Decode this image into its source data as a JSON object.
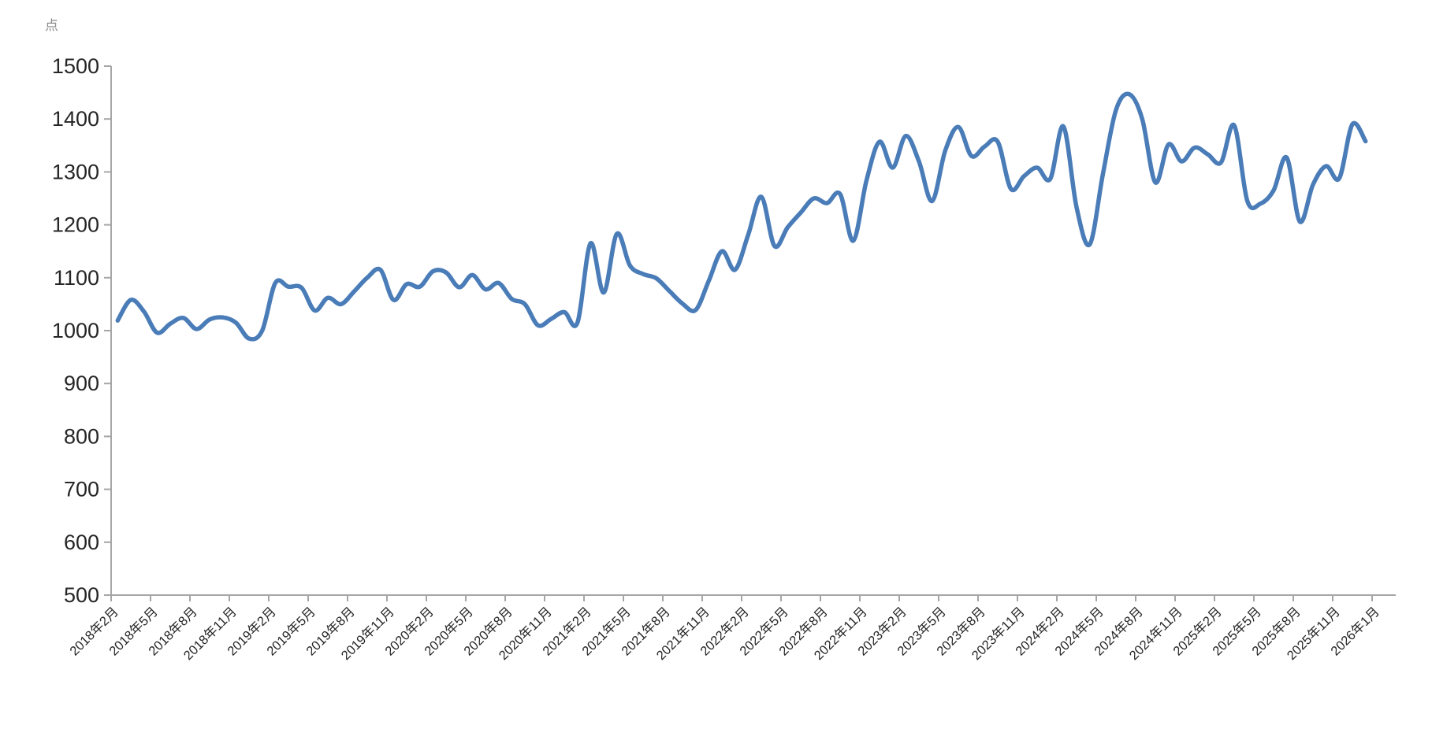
{
  "unit_label": "点",
  "chart_data": {
    "type": "line",
    "title": "",
    "ylabel": "点",
    "xlabel": "",
    "ylim": [
      500,
      1500
    ],
    "y_tick_step": 100,
    "grid": false,
    "legend": "none",
    "line_color": "#4A7CB8",
    "axis_color": "#A6A6A6",
    "tick_text_color": "#262626",
    "unit_label_color": "#8A8A8A",
    "y_tick_labels": [
      "500",
      "600",
      "700",
      "800",
      "900",
      "1000",
      "1100",
      "1200",
      "1300",
      "1400",
      "1500"
    ],
    "x_tick_labels": [
      "2018年2月",
      "2018年5月",
      "2018年8月",
      "2018年11月",
      "2019年2月",
      "2019年5月",
      "2019年8月",
      "2019年11月",
      "2020年2月",
      "2020年5月",
      "2020年8月",
      "2020年11月",
      "2021年2月",
      "2021年5月",
      "2021年8月",
      "2021年11月",
      "2022年2月",
      "2022年5月",
      "2022年8月",
      "2022年11月",
      "2023年2月",
      "2023年5月",
      "2023年8月",
      "2023年11月",
      "2024年2月",
      "2024年5月",
      "2024年8月",
      "2024年11月",
      "2025年2月",
      "2025年5月",
      "2025年8月",
      "2025年11月",
      "2026年1月"
    ],
    "x": [
      "2018年2月",
      "2018年3月",
      "2018年4月",
      "2018年5月",
      "2018年6月",
      "2018年7月",
      "2018年8月",
      "2018年9月",
      "2018年10月",
      "2018年11月",
      "2018年12月",
      "2019年1月",
      "2019年2月",
      "2019年3月",
      "2019年4月",
      "2019年5月",
      "2019年6月",
      "2019年7月",
      "2019年8月",
      "2019年9月",
      "2019年10月",
      "2019年11月",
      "2019年12月",
      "2020年1月",
      "2020年2月",
      "2020年3月",
      "2020年4月",
      "2020年5月",
      "2020年6月",
      "2020年7月",
      "2020年8月",
      "2020年9月",
      "2020年10月",
      "2020年11月",
      "2020年12月",
      "2021年1月",
      "2021年2月",
      "2021年3月",
      "2021年4月",
      "2021年5月",
      "2021年6月",
      "2021年7月",
      "2021年8月",
      "2021年9月",
      "2021年10月",
      "2021年11月",
      "2021年12月",
      "2022年1月",
      "2022年2月",
      "2022年3月",
      "2022年4月",
      "2022年5月",
      "2022年6月",
      "2022年7月",
      "2022年8月",
      "2022年9月",
      "2022年10月",
      "2022年11月",
      "2022年12月",
      "2023年1月",
      "2023年2月",
      "2023年3月",
      "2023年4月",
      "2023年5月",
      "2023年6月",
      "2023年7月",
      "2023年8月",
      "2023年9月",
      "2023年10月",
      "2023年11月",
      "2023年12月",
      "2024年1月",
      "2024年2月",
      "2024年3月",
      "2024年4月",
      "2024年5月",
      "2024年6月",
      "2024年7月",
      "2024年8月",
      "2024年9月",
      "2024年10月",
      "2024年11月",
      "2024年12月",
      "2025年1月",
      "2025年2月",
      "2025年3月",
      "2025年4月",
      "2025年5月",
      "2025年6月",
      "2025年7月",
      "2025年8月",
      "2025年9月",
      "2025年10月",
      "2025年11月",
      "2025年12月",
      "2026年1月"
    ],
    "series": [
      {
        "name": "",
        "values": [
          1019,
          1058,
          1036,
          996,
          1013,
          1024,
          1003,
          1021,
          1025,
          1015,
          985,
          1000,
          1090,
          1083,
          1081,
          1038,
          1062,
          1050,
          1074,
          1100,
          1115,
          1058,
          1088,
          1083,
          1112,
          1110,
          1082,
          1105,
          1078,
          1090,
          1060,
          1050,
          1010,
          1022,
          1035,
          1015,
          1165,
          1072,
          1183,
          1123,
          1107,
          1099,
          1075,
          1051,
          1039,
          1094,
          1150,
          1115,
          1181,
          1253,
          1160,
          1195,
          1223,
          1250,
          1241,
          1258,
          1170,
          1283,
          1357,
          1308,
          1368,
          1320,
          1245,
          1340,
          1385,
          1330,
          1348,
          1357,
          1268,
          1292,
          1308,
          1287,
          1386,
          1233,
          1163,
          1295,
          1417,
          1447,
          1400,
          1280,
          1352,
          1320,
          1346,
          1333,
          1318,
          1388,
          1245,
          1240,
          1265,
          1327,
          1206,
          1276,
          1311,
          1288,
          1390,
          1358
        ]
      }
    ]
  }
}
